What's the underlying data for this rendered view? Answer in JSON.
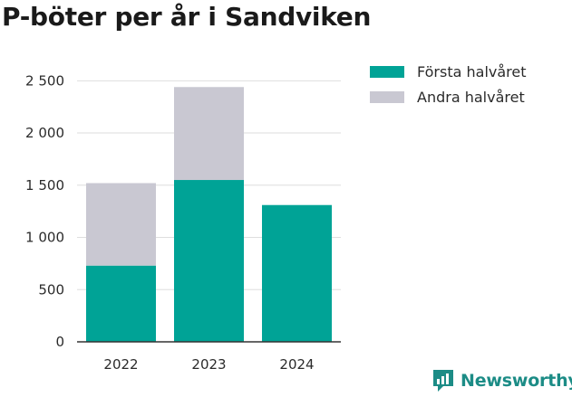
{
  "title": "P-böter per år i Sandviken",
  "brand": {
    "name": "Newsworthy",
    "icon": "newsworthy-logo-icon"
  },
  "colors": {
    "first_half": "#00a396",
    "second_half": "#c9c8d2",
    "grid": "#dedede",
    "axis": "#333333",
    "brand": "#1c8c86"
  },
  "chart_data": {
    "type": "bar",
    "stacked": true,
    "title": "P-böter per år i Sandviken",
    "xlabel": "",
    "ylabel": "",
    "categories": [
      "2022",
      "2023",
      "2024"
    ],
    "series": [
      {
        "name": "Första halvåret",
        "values": [
          730,
          1550,
          1310
        ]
      },
      {
        "name": "Andra halvåret",
        "values": [
          790,
          890,
          0
        ]
      }
    ],
    "ylim": [
      0,
      2650
    ],
    "yticks": [
      0,
      500,
      1000,
      1500,
      2000,
      2500
    ],
    "ytick_labels": [
      "0",
      "500",
      "1 000",
      "1 500",
      "2 000",
      "2 500"
    ],
    "grid": true,
    "legend_position": "top-right"
  }
}
